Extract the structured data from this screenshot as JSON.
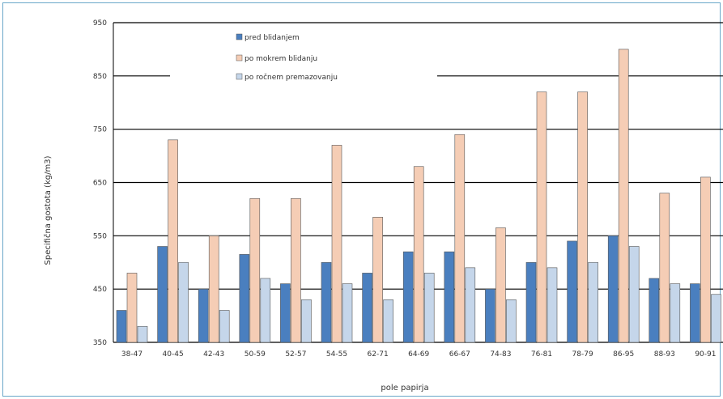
{
  "chart_data": {
    "type": "bar",
    "title": "",
    "xlabel": "pole papirja",
    "ylabel": "Specifična gostota (kg/m3)",
    "ylim": [
      350,
      950
    ],
    "yticks": [
      350,
      450,
      550,
      650,
      750,
      850,
      950
    ],
    "grid": true,
    "legend_position": "top-center",
    "categories": [
      "38-47",
      "40-45",
      "42-43",
      "50-59",
      "52-57",
      "54-55",
      "62-71",
      "64-69",
      "66-67",
      "74-83",
      "76-81",
      "78-79",
      "86-95",
      "88-93",
      "90-91"
    ],
    "series": [
      {
        "name": "pred blidanjem",
        "color": "#4a7fbf",
        "values": [
          410,
          530,
          450,
          515,
          460,
          500,
          480,
          520,
          520,
          450,
          500,
          540,
          550,
          470,
          460
        ]
      },
      {
        "name": "po mokrem blidanju",
        "color": "#f5cdb5",
        "values": [
          480,
          730,
          550,
          620,
          620,
          720,
          585,
          680,
          740,
          565,
          820,
          820,
          900,
          630,
          660
        ]
      },
      {
        "name": "po ročnem premazovanju",
        "color": "#c5d6ea",
        "values": [
          380,
          500,
          410,
          470,
          430,
          460,
          430,
          480,
          490,
          430,
          490,
          500,
          530,
          460,
          440
        ]
      }
    ]
  },
  "colors": {
    "frame": "#6aa7c8",
    "grid": "#000000",
    "bar_stroke": "#555555"
  }
}
